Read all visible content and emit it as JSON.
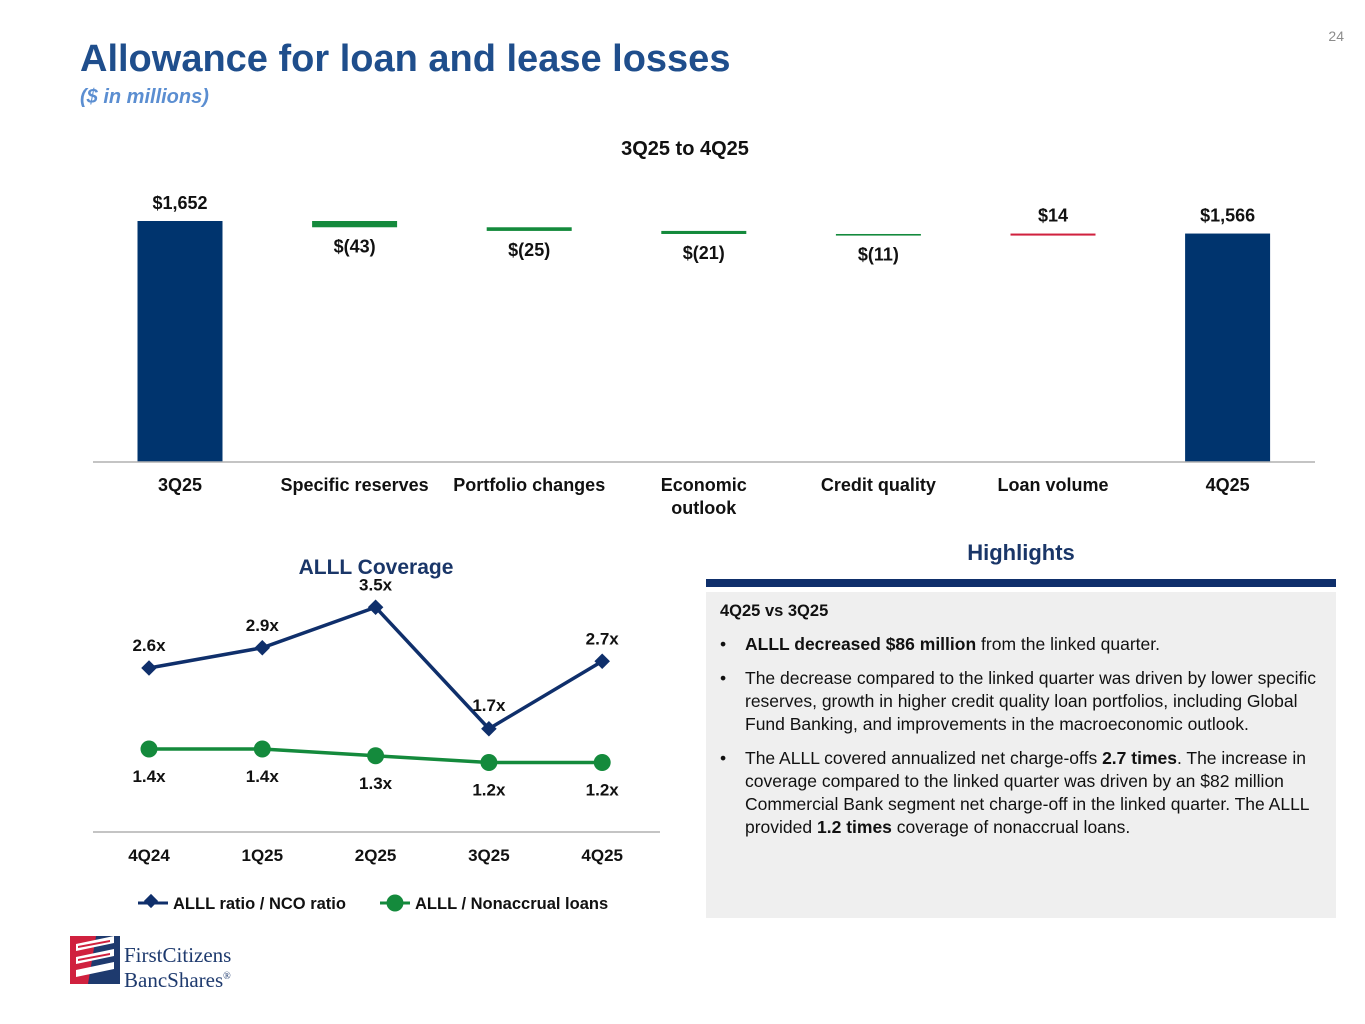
{
  "page_number": "24",
  "title": "Allowance for loan and lease losses",
  "subtitle": "($ in millions)",
  "chart_data": [
    {
      "type": "waterfall",
      "title": "3Q25 to 4Q25",
      "categories": [
        [
          "3Q25"
        ],
        [
          "Specific reserves"
        ],
        [
          "Portfolio changes"
        ],
        [
          "Economic",
          "outlook"
        ],
        [
          "Credit quality"
        ],
        [
          "Loan volume"
        ],
        [
          "4Q25"
        ]
      ],
      "values": [
        1652,
        -43,
        -25,
        -21,
        -11,
        14,
        1566
      ],
      "kinds": [
        "total",
        "delta",
        "delta",
        "delta",
        "delta",
        "delta",
        "total"
      ],
      "data_labels": [
        "$1,652",
        "$(43)",
        "$(25)",
        "$(21)",
        "$(11)",
        "$14",
        "$1,566"
      ],
      "colors": {
        "total": "#00346e",
        "decrease": "#148a3c",
        "increase": "#d0213e"
      }
    },
    {
      "type": "line",
      "title": "ALLL Coverage",
      "categories": [
        "4Q24",
        "1Q25",
        "2Q25",
        "3Q25",
        "4Q25"
      ],
      "series": [
        {
          "name": "ALLL ratio / NCO ratio",
          "values": [
            2.6,
            2.9,
            3.5,
            1.7,
            2.7
          ],
          "labels": [
            "2.6x",
            "2.9x",
            "3.5x",
            "1.7x",
            "2.7x"
          ],
          "color": "#0f2f6b",
          "marker": "diamond"
        },
        {
          "name": "ALLL / Nonaccrual loans",
          "values": [
            1.4,
            1.4,
            1.3,
            1.2,
            1.2
          ],
          "labels": [
            "1.4x",
            "1.4x",
            "1.3x",
            "1.2x",
            "1.2x"
          ],
          "color": "#148a3c",
          "marker": "circle"
        }
      ],
      "ylim": [
        0,
        4.2
      ]
    }
  ],
  "highlights": {
    "title": "Highlights",
    "heading": "4Q25 vs 3Q25",
    "b1": {
      "bold": "ALLL decreased $86 million",
      "text": " from the linked quarter."
    },
    "b2": {
      "text": "The decrease compared to the linked quarter was driven by lower specific reserves, growth in higher credit quality loan portfolios, including Global Fund Banking, and improvements in the macroeconomic outlook."
    },
    "b3": {
      "t1": "The ALLL covered annualized net charge-offs ",
      "b1": "2.7 times",
      "t2": ". The increase in coverage compared to the linked quarter was driven by an $82 million Commercial Bank segment net charge-off in the linked quarter. The ALLL provided ",
      "b2": "1.2 times",
      "t3": " coverage of nonaccrual loans."
    }
  },
  "logo": {
    "line1": "FirstCitizens",
    "line2": "BancShares",
    "mark": "®"
  }
}
